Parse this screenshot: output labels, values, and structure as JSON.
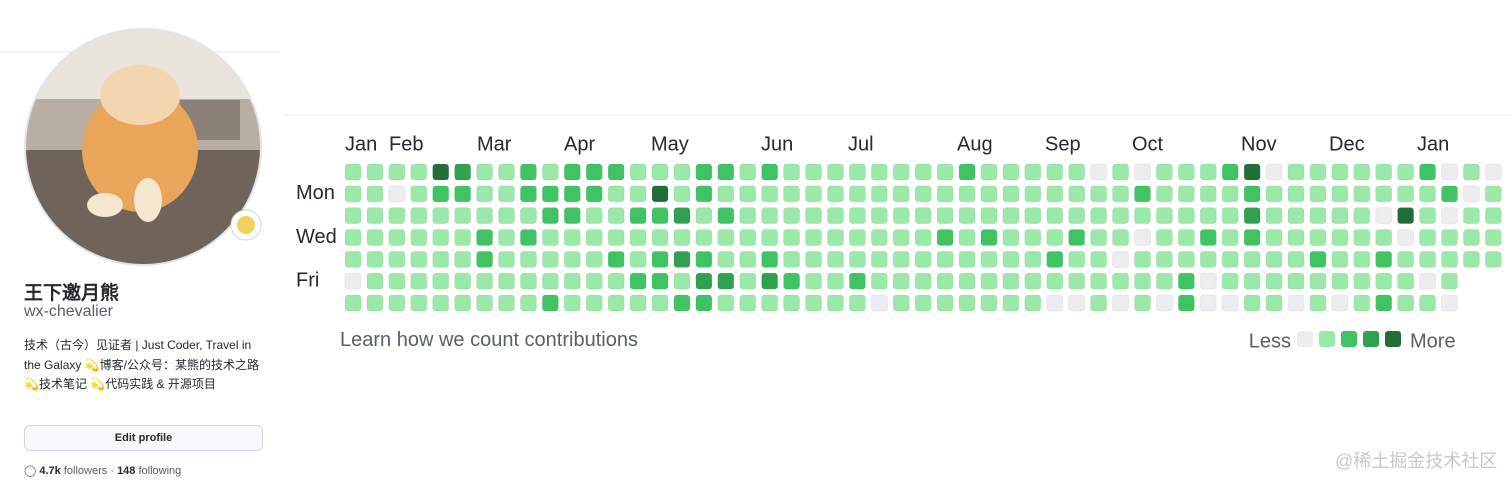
{
  "profile": {
    "name": "王下邀月熊",
    "username": "wx-chevalier",
    "bio": "技术（古今）见证者 | Just Coder, Travel in the Galaxy 💫博客/公众号：某熊的技术之路 💫技术笔记 💫代码实践 & 开源项目",
    "edit_button": "Edit profile",
    "followers_count": "4.7k",
    "followers_label": "followers",
    "separator": "·",
    "following_count": "148",
    "following_label": "following"
  },
  "contributions": {
    "months": [
      "Jan",
      "Feb",
      "Mar",
      "Apr",
      "May",
      "Jun",
      "Jul",
      "Aug",
      "Sep",
      "Oct",
      "Nov",
      "Dec",
      "Jan"
    ],
    "weekdays": [
      "Mon",
      "Wed",
      "Fri"
    ],
    "colors": [
      "#ebedf0",
      "#9be9a8",
      "#40c463",
      "#30a14e",
      "#216e39"
    ],
    "levels": [
      [
        1,
        1,
        1,
        1,
        4,
        3,
        1,
        1,
        2,
        1,
        2,
        2,
        2,
        1,
        1,
        1,
        2,
        2,
        1,
        2,
        1,
        1,
        1,
        1,
        1,
        1,
        1,
        1,
        2,
        1,
        1,
        1,
        1,
        1,
        0,
        1,
        0,
        1,
        1,
        1,
        2,
        4,
        0,
        1,
        1,
        1,
        1,
        1,
        1,
        2,
        0,
        1,
        0
      ],
      [
        1,
        1,
        0,
        1,
        2,
        2,
        1,
        1,
        2,
        2,
        2,
        2,
        1,
        1,
        4,
        1,
        2,
        1,
        1,
        1,
        1,
        1,
        1,
        1,
        1,
        1,
        1,
        1,
        1,
        1,
        1,
        1,
        1,
        1,
        1,
        1,
        2,
        1,
        1,
        1,
        1,
        2,
        1,
        1,
        1,
        1,
        1,
        1,
        1,
        1,
        2,
        0,
        1
      ],
      [
        1,
        1,
        1,
        1,
        1,
        1,
        1,
        1,
        1,
        2,
        2,
        1,
        1,
        2,
        2,
        3,
        1,
        2,
        1,
        1,
        1,
        1,
        1,
        1,
        1,
        1,
        1,
        1,
        1,
        1,
        1,
        1,
        1,
        1,
        1,
        1,
        1,
        1,
        1,
        1,
        1,
        3,
        1,
        1,
        1,
        1,
        1,
        0,
        4,
        1,
        0,
        1,
        1
      ],
      [
        1,
        1,
        1,
        1,
        1,
        1,
        2,
        1,
        2,
        1,
        1,
        1,
        1,
        1,
        1,
        1,
        1,
        1,
        1,
        1,
        1,
        1,
        1,
        1,
        1,
        1,
        1,
        2,
        1,
        2,
        1,
        1,
        1,
        2,
        1,
        1,
        0,
        1,
        1,
        2,
        1,
        2,
        1,
        1,
        1,
        1,
        1,
        1,
        0,
        1,
        1,
        1,
        1
      ],
      [
        1,
        1,
        1,
        1,
        1,
        1,
        2,
        1,
        1,
        1,
        1,
        1,
        2,
        1,
        2,
        3,
        2,
        1,
        1,
        2,
        1,
        1,
        1,
        1,
        1,
        1,
        1,
        1,
        1,
        1,
        1,
        1,
        2,
        1,
        1,
        0,
        1,
        1,
        1,
        1,
        1,
        1,
        1,
        1,
        2,
        1,
        1,
        2,
        1,
        1,
        1,
        1,
        1
      ],
      [
        0,
        1,
        1,
        1,
        1,
        1,
        1,
        1,
        1,
        1,
        1,
        1,
        1,
        2,
        2,
        1,
        3,
        3,
        1,
        3,
        2,
        1,
        1,
        2,
        1,
        1,
        1,
        1,
        1,
        1,
        1,
        1,
        1,
        1,
        1,
        1,
        1,
        1,
        2,
        0,
        1,
        1,
        1,
        1,
        1,
        1,
        1,
        1,
        1,
        0,
        1,
        null,
        null
      ],
      [
        1,
        1,
        1,
        1,
        1,
        1,
        1,
        1,
        1,
        2,
        1,
        1,
        1,
        1,
        1,
        2,
        2,
        1,
        1,
        1,
        1,
        1,
        1,
        1,
        0,
        1,
        1,
        1,
        1,
        1,
        1,
        1,
        0,
        0,
        1,
        0,
        1,
        0,
        2,
        0,
        0,
        1,
        1,
        0,
        1,
        0,
        1,
        2,
        1,
        1,
        0,
        null,
        null
      ]
    ],
    "learn_link": "Learn how we count contributions",
    "less": "Less",
    "more": "More"
  },
  "watermark": "@稀土掘金技术社区"
}
